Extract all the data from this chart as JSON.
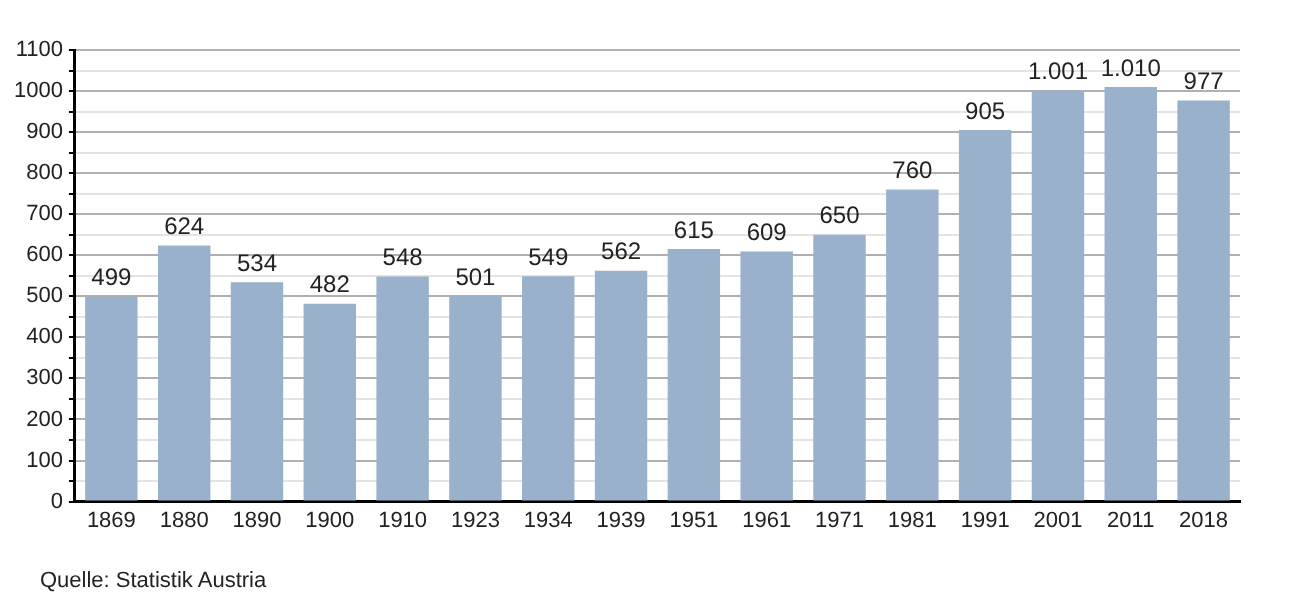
{
  "chart_data": {
    "type": "bar",
    "categories": [
      "1869",
      "1880",
      "1890",
      "1900",
      "1910",
      "1923",
      "1934",
      "1939",
      "1951",
      "1961",
      "1971",
      "1981",
      "1991",
      "2001",
      "2011",
      "2018"
    ],
    "values": [
      499,
      624,
      534,
      482,
      548,
      501,
      549,
      562,
      615,
      609,
      650,
      760,
      905,
      1001,
      1010,
      977
    ],
    "value_labels": [
      "499",
      "624",
      "534",
      "482",
      "548",
      "501",
      "549",
      "562",
      "615",
      "609",
      "650",
      "760",
      "905",
      "1.001",
      "1.010",
      "977"
    ],
    "color": "#99b1cb",
    "ylim": [
      0,
      1100
    ],
    "yticks": [
      0,
      {
        "value": 50,
        "label": null
      },
      100,
      {
        "value": 150,
        "label": null
      },
      200,
      {
        "value": 250,
        "label": null
      },
      300,
      {
        "value": 350,
        "label": null
      },
      400,
      {
        "value": 450,
        "label": null
      },
      500,
      {
        "value": 550,
        "label": null
      },
      600,
      {
        "value": 650,
        "label": null
      },
      700,
      {
        "value": 750,
        "label": null
      },
      800,
      {
        "value": 850,
        "label": null
      },
      900,
      {
        "value": 950,
        "label": null
      },
      1000,
      {
        "value": 1050,
        "label": null
      },
      1100
    ],
    "grid": "y",
    "annotations": [
      "Quelle: Statistik Austria"
    ]
  }
}
